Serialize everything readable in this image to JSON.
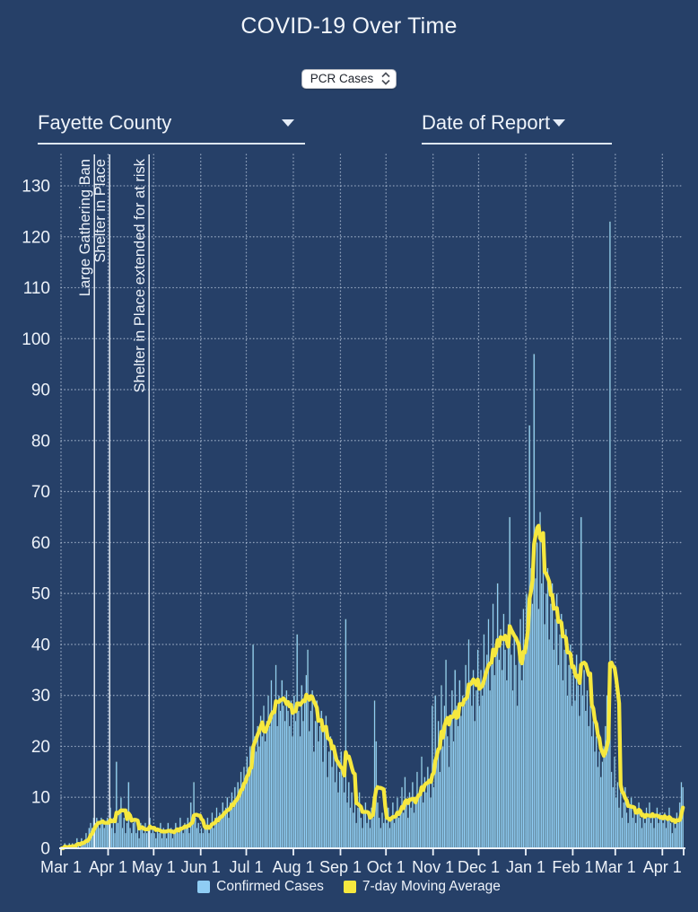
{
  "page": {
    "title": "COVID-19 Over Time"
  },
  "metric_select": {
    "value": "PCR Cases"
  },
  "filters": {
    "county": {
      "label": "Fayette County"
    },
    "date_type": {
      "label": "Date of Report"
    }
  },
  "chart_data": {
    "type": "bar",
    "title": "COVID-19 Over Time",
    "xlabel": "Date of Report",
    "ylabel": "",
    "start_date": "2020-03-01",
    "x_tick_labels": [
      "Mar 1",
      "Apr 1",
      "May 1",
      "Jun 1",
      "Jul 1",
      "Aug 1",
      "Sep 1",
      "Oct 1",
      "Nov 1",
      "Dec 1",
      "Jan 1",
      "Feb 1",
      "Mar 1",
      "Apr 1"
    ],
    "x_tick_day_index": [
      0,
      31,
      61,
      92,
      122,
      153,
      184,
      214,
      245,
      275,
      306,
      337,
      365,
      396
    ],
    "ytick_max": 130,
    "ytick_step": 10,
    "ylim": [
      0,
      136
    ],
    "grid": true,
    "moving_average_window": 7,
    "legend": [
      "Confirmed Cases",
      "7-day Moving Average"
    ],
    "annotations": [
      {
        "day": 22,
        "label": "Large Gathering Ban"
      },
      {
        "day": 32,
        "label": "Shelter in Place"
      },
      {
        "day": 58,
        "label": "Shelter in Place extended for at risk"
      }
    ],
    "colors": {
      "background": "#264068",
      "bar": "#8fcdf4",
      "bar_edge": "#3d4f57",
      "line": "#f6e83e",
      "grid": "#ccd9ec",
      "axis": "#eef3fa",
      "event_line": "#f2f6fb"
    },
    "values": [
      0,
      0,
      1,
      0,
      0,
      1,
      0,
      1,
      0,
      1,
      2,
      1,
      0,
      2,
      1,
      1,
      3,
      2,
      4,
      5,
      4,
      6,
      5,
      6,
      5,
      4,
      6,
      5,
      4,
      5,
      6,
      5,
      8,
      4,
      6,
      3,
      17,
      5,
      7,
      10,
      4,
      6,
      3,
      5,
      13,
      4,
      3,
      5,
      6,
      3,
      4,
      2,
      5,
      4,
      3,
      5,
      3,
      4,
      6,
      3,
      4,
      3,
      2,
      4,
      3,
      5,
      2,
      4,
      3,
      2,
      5,
      3,
      4,
      2,
      3,
      5,
      4,
      3,
      6,
      4,
      3,
      5,
      4,
      6,
      3,
      9,
      5,
      13,
      6,
      4,
      5,
      3,
      4,
      3,
      5,
      4,
      6,
      3,
      5,
      7,
      4,
      6,
      8,
      5,
      7,
      6,
      9,
      7,
      8,
      10,
      6,
      9,
      11,
      8,
      12,
      10,
      13,
      11,
      15,
      12,
      16,
      14,
      18,
      15,
      20,
      16,
      40,
      22,
      19,
      24,
      20,
      26,
      22,
      28,
      21,
      25,
      30,
      24,
      33,
      26,
      28,
      36,
      24,
      30,
      27,
      33,
      28,
      25,
      31,
      27,
      24,
      29,
      22,
      30,
      25,
      42,
      27,
      22,
      32,
      25,
      29,
      34,
      39,
      23,
      27,
      31,
      19,
      25,
      29,
      21,
      24,
      27,
      17,
      23,
      26,
      14,
      19,
      22,
      16,
      20,
      13,
      17,
      11,
      15,
      19,
      14,
      11,
      45,
      9,
      13,
      8,
      11,
      7,
      9,
      5,
      8,
      11,
      6,
      4,
      7,
      9,
      5,
      7,
      4,
      8,
      6,
      29,
      21,
      9,
      6,
      4,
      7,
      5,
      6,
      5,
      8,
      4,
      6,
      9,
      5,
      7,
      10,
      6,
      8,
      12,
      7,
      14,
      9,
      6,
      11,
      8,
      13,
      7,
      9,
      15,
      10,
      12,
      18,
      9,
      14,
      11,
      16,
      13,
      10,
      28,
      12,
      30,
      18,
      25,
      15,
      32,
      20,
      28,
      37,
      22,
      16,
      26,
      31,
      21,
      35,
      28,
      24,
      33,
      26,
      30,
      28,
      36,
      31,
      41,
      33,
      28,
      35,
      25,
      31,
      39,
      28,
      35,
      30,
      42,
      33,
      38,
      45,
      31,
      36,
      48,
      34,
      40,
      52,
      37,
      43,
      35,
      46,
      39,
      33,
      44,
      65,
      38,
      31,
      42,
      36,
      28,
      39,
      45,
      33,
      47,
      41,
      50,
      44,
      83,
      55,
      48,
      97,
      53,
      60,
      47,
      66,
      52,
      58,
      44,
      50,
      55,
      41,
      48,
      52,
      39,
      45,
      50,
      36,
      42,
      46,
      33,
      39,
      43,
      30,
      36,
      40,
      28,
      34,
      29,
      38,
      32,
      26,
      65,
      30,
      35,
      27,
      31,
      24,
      28,
      22,
      25,
      19,
      22,
      16,
      19,
      14,
      17,
      20,
      24,
      30,
      26,
      123,
      15,
      12,
      18,
      10,
      13,
      8,
      11,
      6,
      9,
      12,
      7,
      5,
      8,
      10,
      6,
      8,
      5,
      7,
      9,
      6,
      4,
      7,
      5,
      8,
      6,
      9,
      5,
      7,
      4,
      6,
      8,
      5,
      7,
      6,
      5,
      7,
      4,
      6,
      8,
      5,
      3,
      6,
      4,
      7,
      5,
      9,
      13,
      12
    ]
  }
}
